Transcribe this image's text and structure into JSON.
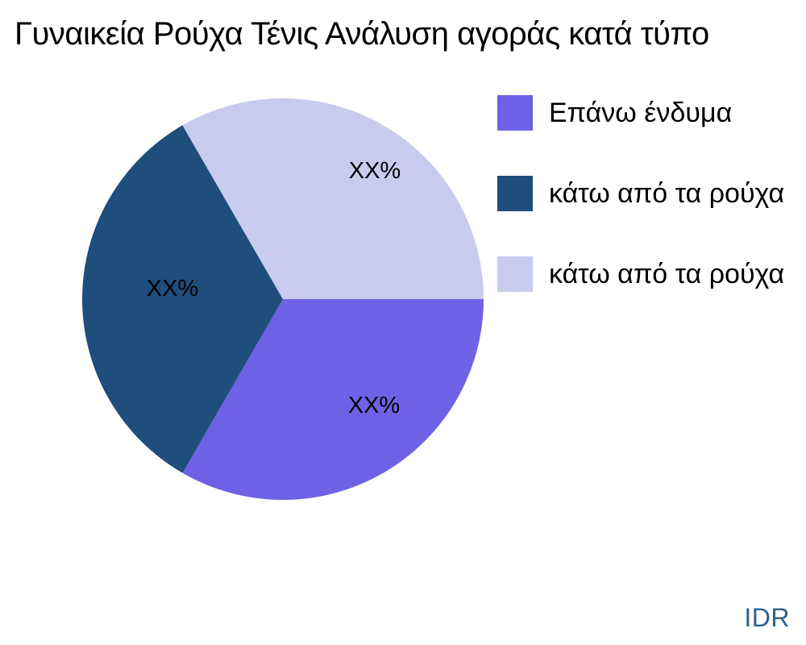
{
  "title": "Γυναικεία Ρούχα Τένις Ανάλυση αγοράς κατά τύπο",
  "chart_data": {
    "type": "pie",
    "title": "Γυναικεία Ρούχα Τένις Ανάλυση αγοράς κατά τύπο",
    "labels": [
      "Επάνω ένδυμα",
      "κάτω από τα ρούχα",
      "κάτω από τα ρούχα"
    ],
    "values": [
      33.33,
      33.33,
      33.34
    ],
    "percent_labels": [
      "XX%",
      "XX%",
      "XX%"
    ],
    "colors": [
      "#6F61E5",
      "#1F4E7D",
      "#C8CBEE"
    ],
    "start_angle_deg": 0,
    "direction": "clockwise",
    "legend_position": "right",
    "values_masked": true
  },
  "legend": {
    "items": [
      {
        "label": "Επάνω ένδυμα",
        "color": "#6F61E5"
      },
      {
        "label": "κάτω από τα ρούχα",
        "color": "#1F4E7D"
      },
      {
        "label": "κάτω από τα ρούχα",
        "color": "#C8CBEE"
      }
    ]
  },
  "watermark": {
    "text": "IDR",
    "color": "#2D618F"
  }
}
